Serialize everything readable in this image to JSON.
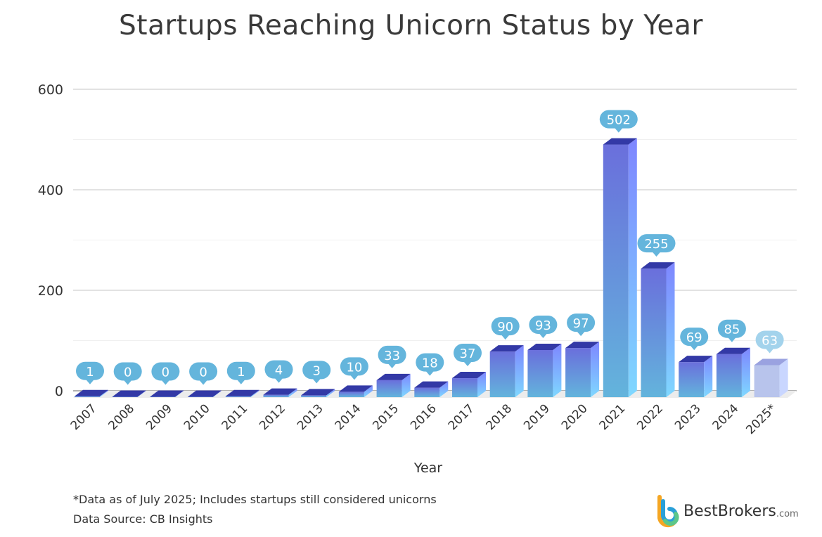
{
  "chart_data": {
    "type": "bar",
    "title": "Startups Reaching Unicorn Status by Year",
    "xlabel": "Year",
    "ylabel": "",
    "ylim": [
      0,
      600
    ],
    "yticks": [
      0,
      200,
      400,
      600
    ],
    "grid": true,
    "categories": [
      "2007",
      "2008",
      "2009",
      "2010",
      "2011",
      "2012",
      "2013",
      "2014",
      "2015",
      "2016",
      "2017",
      "2018",
      "2019",
      "2020",
      "2021",
      "2022",
      "2023",
      "2024",
      "2025*"
    ],
    "values": [
      1,
      0,
      0,
      0,
      1,
      4,
      3,
      10,
      33,
      18,
      37,
      90,
      93,
      97,
      502,
      255,
      69,
      85,
      63
    ],
    "highlight_partial": "2025*",
    "colors": {
      "bar_front_top": "#6a6fdc",
      "bar_front_bottom": "#63b4dc",
      "bar_side": "#7fd8ff",
      "bar_top": "#3339a6",
      "label_bubble": "#64b5dc",
      "partial_bar": "#b8c4ec",
      "partial_bubble": "#a3d3ec"
    }
  },
  "footnote": "*Data as of July 2025; Includes startups still considered unicorns",
  "source": "Data Source: CB Insights",
  "logo": {
    "name": "BestBrokers",
    "suffix": ".com"
  }
}
